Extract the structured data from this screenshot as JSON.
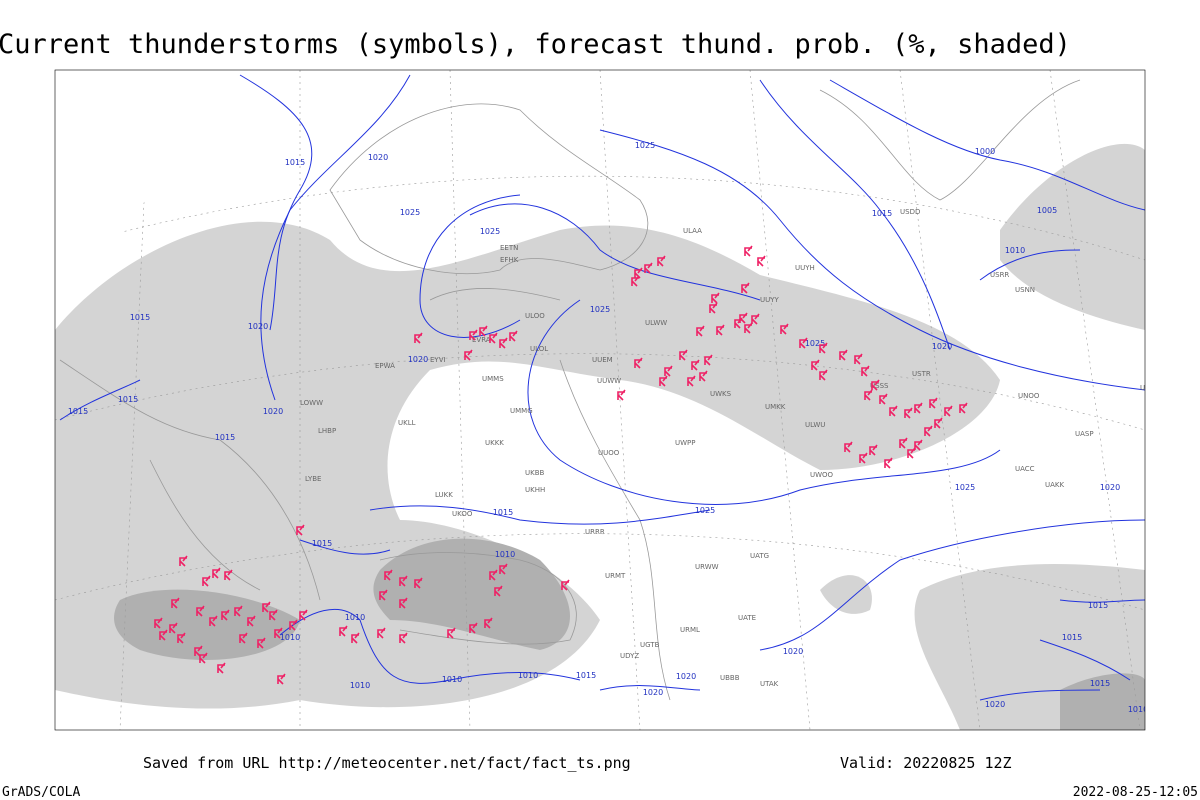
{
  "header": {
    "title": "Current thunderstorms (symbols), forecast thund. prob. (%, shaded)"
  },
  "isobar_labels": [
    "1015",
    "1020",
    "1025",
    "1025",
    "1025",
    "1015",
    "1000",
    "1005",
    "1010",
    "1015",
    "1020",
    "1020",
    "1025",
    "1025",
    "1020",
    "1015",
    "1015",
    "1020",
    "1015",
    "1025",
    "1020",
    "1025",
    "1015",
    "1015",
    "1010",
    "1020",
    "1015",
    "1010",
    "1010",
    "1010",
    "1010",
    "1010",
    "1015",
    "1020",
    "1020",
    "1015",
    "1015",
    "1020",
    "1010"
  ],
  "stations": [
    "ULAA",
    "ULOO",
    "UUYY",
    "ULWW",
    "UUEM",
    "UUWW",
    "UMMS",
    "UMMG",
    "UKKK",
    "UKLL",
    "UUOO",
    "UWPP",
    "UWKS",
    "UMKK",
    "UKBB",
    "UKHH",
    "URRR",
    "URWW",
    "UATG",
    "UATE",
    "ULOL",
    "EETN",
    "EFHK",
    "EVRA",
    "EYVI",
    "EPWA",
    "LOWW",
    "LHBP",
    "LYBE",
    "LUKK",
    "UKOO",
    "URMT",
    "URML",
    "UGTB",
    "UDYZ",
    "UBBB",
    "UTAK",
    "UAKK",
    "UACC",
    "UASP",
    "USSS",
    "USTR",
    "USRR",
    "USNN",
    "UNOO",
    "UNBB",
    "UUYH",
    "USDD",
    "ULWU",
    "UWOO"
  ],
  "footer": {
    "saved_from": "Saved from URL http://meteocenter.net/fact/fact_ts.png",
    "valid": "Valid: 20220825 12Z",
    "credit": "GrADS/COLA",
    "timestamp": "2022-08-25-12:05"
  }
}
